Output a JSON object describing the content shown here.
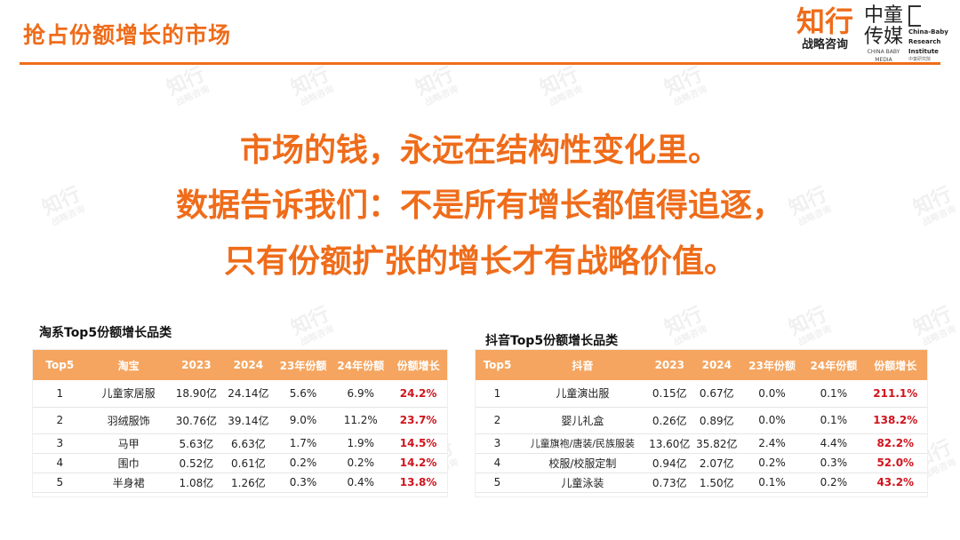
{
  "header": {
    "title": "抢占份额增长的市场"
  },
  "logos": {
    "zhixing_big": "知行",
    "zhixing_small": "战略咨询",
    "baby_big": "中童传媒",
    "baby_sub": "CHINA BABY MEDIA",
    "cbri_line1": "China-Baby",
    "cbri_line2": "Research",
    "cbri_line3": "Institute",
    "cbri_cn": "中童研究院"
  },
  "watermark": {
    "line1": "知行",
    "line2": "战略咨询"
  },
  "headlines": [
    "市场的钱，永远在结构性变化里。",
    "数据告诉我们：不是所有增长都值得追逐，",
    "只有份额扩张的增长才有战略价值。"
  ],
  "taobao_table": {
    "title": "淘系Top5份额增长品类",
    "headers": [
      "Top5",
      "淘宝",
      "2023",
      "2024",
      "23年份额",
      "24年份额",
      "份额增长"
    ],
    "rows": [
      [
        "1",
        "儿童家居服",
        "18.90亿",
        "24.14亿",
        "5.6%",
        "6.9%",
        "24.2%"
      ],
      [
        "2",
        "羽绒服饰",
        "30.76亿",
        "39.14亿",
        "9.0%",
        "11.2%",
        "23.7%"
      ],
      [
        "3",
        "马甲",
        "5.63亿",
        "6.63亿",
        "1.7%",
        "1.9%",
        "14.5%"
      ],
      [
        "4",
        "围巾",
        "0.52亿",
        "0.61亿",
        "0.2%",
        "0.2%",
        "14.2%"
      ],
      [
        "5",
        "半身裙",
        "1.08亿",
        "1.26亿",
        "0.3%",
        "0.4%",
        "13.8%"
      ]
    ]
  },
  "douyin_table": {
    "title": "抖音Top5份额增长品类",
    "headers": [
      "Top5",
      "抖音",
      "2023",
      "2024",
      "23年份额",
      "24年份额",
      "份额增长"
    ],
    "rows": [
      [
        "1",
        "儿童演出服",
        "0.15亿",
        "0.67亿",
        "0.0%",
        "0.1%",
        "211.1%"
      ],
      [
        "2",
        "婴儿礼盒",
        "0.26亿",
        "0.89亿",
        "0.0%",
        "0.1%",
        "138.2%"
      ],
      [
        "3",
        "儿童旗袍/唐装/民族服装",
        "13.60亿",
        "35.82亿",
        "2.4%",
        "4.4%",
        "82.2%"
      ],
      [
        "4",
        "校服/校服定制",
        "0.94亿",
        "2.07亿",
        "0.2%",
        "0.3%",
        "52.0%"
      ],
      [
        "5",
        "儿童泳装",
        "0.73亿",
        "1.50亿",
        "0.1%",
        "0.2%",
        "43.2%"
      ]
    ]
  },
  "colors": {
    "accent": "#ef6c1a",
    "header_fill": "#f5a55f",
    "growth": "#d0131d"
  }
}
